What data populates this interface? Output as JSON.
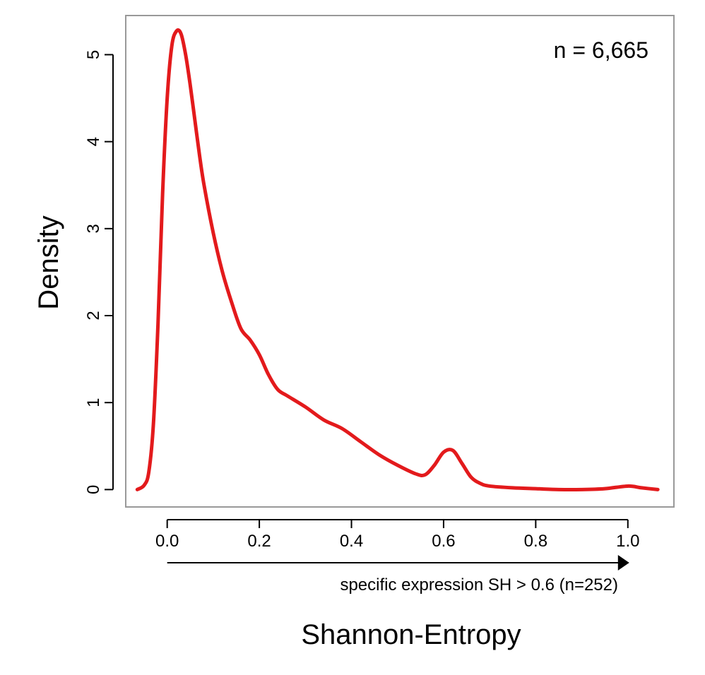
{
  "chart_data": {
    "type": "line",
    "title": "",
    "xlabel": "Shannon-Entropy",
    "ylabel": "Density",
    "xlim": [
      -0.09,
      1.1
    ],
    "ylim": [
      -0.2,
      5.45
    ],
    "grid": false,
    "x_ticks": [
      0.0,
      0.2,
      0.4,
      0.6,
      0.8,
      1.0
    ],
    "x_tick_labels": [
      "0.0",
      "0.2",
      "0.4",
      "0.6",
      "0.8",
      "1.0"
    ],
    "y_ticks": [
      0,
      1,
      2,
      3,
      4,
      5
    ],
    "y_tick_labels": [
      "0",
      "1",
      "2",
      "3",
      "4",
      "5"
    ],
    "series": [
      {
        "color": "#e31a1c",
        "x": [
          -0.065,
          -0.05,
          -0.04,
          -0.03,
          -0.02,
          -0.01,
          0.0,
          0.01,
          0.02,
          0.03,
          0.04,
          0.05,
          0.06,
          0.07,
          0.08,
          0.1,
          0.12,
          0.14,
          0.16,
          0.18,
          0.2,
          0.22,
          0.24,
          0.26,
          0.3,
          0.34,
          0.38,
          0.42,
          0.46,
          0.5,
          0.54,
          0.56,
          0.58,
          0.6,
          0.62,
          0.64,
          0.66,
          0.68,
          0.7,
          0.75,
          0.8,
          0.85,
          0.9,
          0.95,
          1.0,
          1.03,
          1.065
        ],
        "y": [
          0.0,
          0.05,
          0.2,
          0.75,
          1.9,
          3.4,
          4.5,
          5.1,
          5.27,
          5.24,
          5.0,
          4.65,
          4.25,
          3.85,
          3.5,
          2.95,
          2.5,
          2.15,
          1.85,
          1.72,
          1.55,
          1.32,
          1.15,
          1.08,
          0.95,
          0.8,
          0.7,
          0.55,
          0.4,
          0.28,
          0.18,
          0.17,
          0.28,
          0.43,
          0.45,
          0.3,
          0.14,
          0.07,
          0.04,
          0.02,
          0.01,
          0.0,
          0.0,
          0.01,
          0.04,
          0.02,
          0.0
        ]
      }
    ],
    "annotations": {
      "n_label": "n = 6,665",
      "range_label": "specific expression SH > 0.6 (n=252)",
      "range_arrow": {
        "from": 0.0,
        "to": 1.0
      }
    },
    "colors": {
      "line": "#e31a1c",
      "frame": "#999999",
      "axis": "#000000"
    }
  }
}
